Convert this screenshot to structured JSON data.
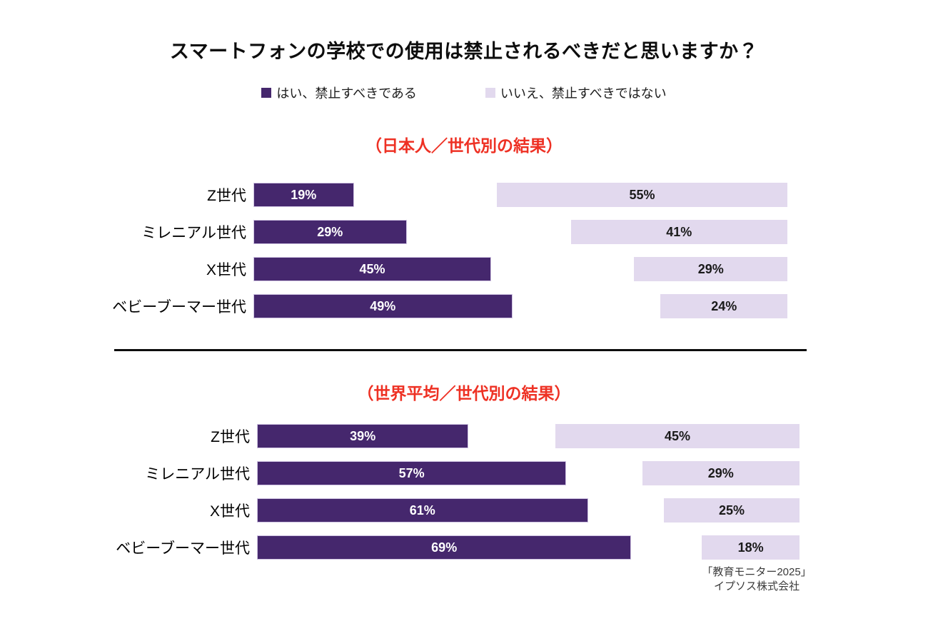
{
  "title": "スマートフォンの学校での使用は禁止されるべきだと思いますか？",
  "legend": {
    "yes_label": "はい、禁止すべきである",
    "no_label": "いいえ、禁止すべきではない"
  },
  "colors": {
    "yes_bar": "#45276d",
    "no_bar": "#e2d9ee",
    "section_title": "#ee3124"
  },
  "chart_data": [
    {
      "type": "bar",
      "orientation": "horizontal",
      "title": "（日本人／世代別の結果）",
      "unit": "%",
      "categories": [
        "Z世代",
        "ミレニアル世代",
        "X世代",
        "ベビーブーマー世代"
      ],
      "series": [
        {
          "name": "はい、禁止すべきである",
          "values": [
            19,
            29,
            45,
            49
          ]
        },
        {
          "name": "いいえ、禁止すべきではない",
          "values": [
            55,
            41,
            29,
            24
          ]
        }
      ],
      "layout": {
        "yes_left_anchored": true,
        "no_right_anchored": true,
        "grid": false,
        "legend_position": "top"
      }
    },
    {
      "type": "bar",
      "orientation": "horizontal",
      "title": "（世界平均／世代別の結果）",
      "unit": "%",
      "categories": [
        "Z世代",
        "ミレニアル世代",
        "X世代",
        "ベビーブーマー世代"
      ],
      "series": [
        {
          "name": "はい、禁止すべきである",
          "values": [
            39,
            57,
            61,
            69
          ]
        },
        {
          "name": "いいえ、禁止すべきではない",
          "values": [
            45,
            29,
            25,
            18
          ]
        }
      ],
      "layout": {
        "yes_left_anchored": true,
        "no_right_anchored": true,
        "grid": false,
        "legend_position": "top"
      }
    }
  ],
  "footer": {
    "line1": "「教育モニター2025」",
    "line2": "イプソス株式会社"
  }
}
